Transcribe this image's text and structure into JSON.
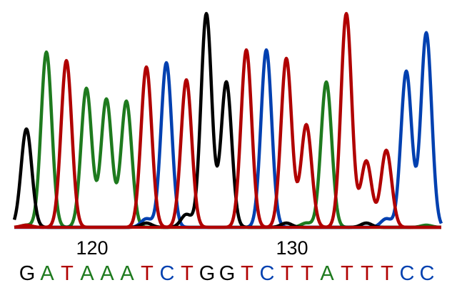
{
  "chart_data": {
    "type": "line",
    "title": "",
    "xlabel": "",
    "ylabel": "",
    "grid": false,
    "legend": "none",
    "colors": {
      "G": "#000000",
      "A": "#1e7a1e",
      "T": "#b00000",
      "C": "#0040b0"
    },
    "position_ticks": [
      "120",
      "130"
    ],
    "bases": [
      "G",
      "A",
      "T",
      "A",
      "A",
      "A",
      "T",
      "C",
      "T",
      "G",
      "G",
      "T",
      "C",
      "T",
      "T",
      "A",
      "T",
      "T",
      "T",
      "C",
      "C"
    ],
    "base_positions": [
      117,
      118,
      119,
      120,
      121,
      122,
      123,
      124,
      125,
      126,
      127,
      128,
      129,
      130,
      131,
      132,
      133,
      134,
      135,
      136,
      137
    ],
    "peak_heights": [
      46,
      82,
      78,
      65,
      60,
      59,
      75,
      77,
      69,
      100,
      68,
      83,
      80,
      79,
      48,
      68,
      100,
      31,
      36,
      73,
      91
    ],
    "minor_peaks": [
      {
        "base": "A",
        "position": 117,
        "height": 1
      },
      {
        "base": "T",
        "position": 117,
        "height": 1
      },
      {
        "base": "G",
        "position": 123,
        "height": 2
      },
      {
        "base": "C",
        "position": 123,
        "height": 4
      },
      {
        "base": "G",
        "position": 125,
        "height": 6
      },
      {
        "base": "C",
        "position": 129,
        "height": 3
      },
      {
        "base": "G",
        "position": 130,
        "height": 2
      },
      {
        "base": "A",
        "position": 131,
        "height": 2
      },
      {
        "base": "G",
        "position": 134,
        "height": 2
      },
      {
        "base": "C",
        "position": 135,
        "height": 4
      },
      {
        "base": "A",
        "position": 137,
        "height": 1
      }
    ]
  }
}
